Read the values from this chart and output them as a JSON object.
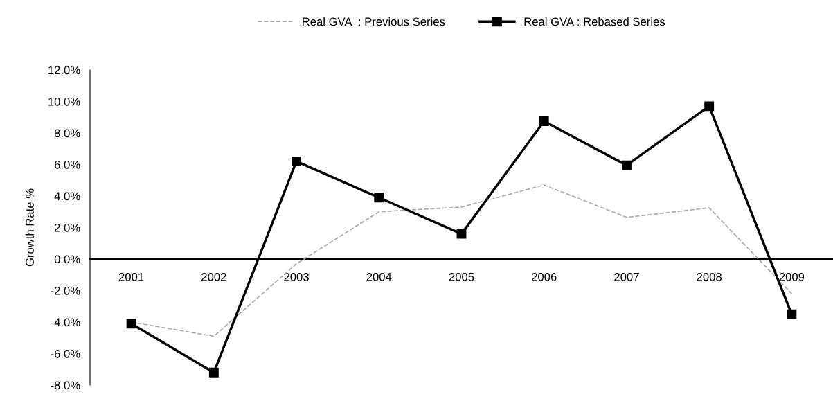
{
  "chart_data": {
    "type": "line",
    "ylabel": "Growth Rate %",
    "categories": [
      "2001",
      "2002",
      "2003",
      "2004",
      "2005",
      "2006",
      "2007",
      "2008",
      "2009"
    ],
    "series": [
      {
        "name": "Real GVA  : Previous Series",
        "color": "#a8a8a8",
        "marker": "none",
        "line_style": "dashed",
        "values": [
          -4.0,
          -4.9,
          -0.3,
          3.0,
          3.3,
          4.7,
          2.65,
          3.25,
          -2.2
        ]
      },
      {
        "name": "Real GVA : Rebased Series",
        "color": "#000000",
        "marker": "square",
        "line_style": "solid",
        "values": [
          -4.1,
          -7.2,
          6.2,
          3.9,
          1.6,
          8.75,
          5.95,
          9.7,
          -3.5
        ]
      }
    ],
    "ylim": [
      -8,
      12
    ],
    "yticks": [
      {
        "value": -8,
        "label": "-8.0%"
      },
      {
        "value": -6,
        "label": "-6.0%"
      },
      {
        "value": -4,
        "label": "-4.0%"
      },
      {
        "value": -2,
        "label": "-2.0%"
      },
      {
        "value": 0,
        "label": "0.0%"
      },
      {
        "value": 2,
        "label": "2.0%"
      },
      {
        "value": 4,
        "label": "4.0%"
      },
      {
        "value": 6,
        "label": "6.0%"
      },
      {
        "value": 8,
        "label": "8.0%"
      },
      {
        "value": 10,
        "label": "10.0%"
      },
      {
        "value": 12,
        "label": "12.0%"
      }
    ],
    "grid": false,
    "legend": "top"
  }
}
